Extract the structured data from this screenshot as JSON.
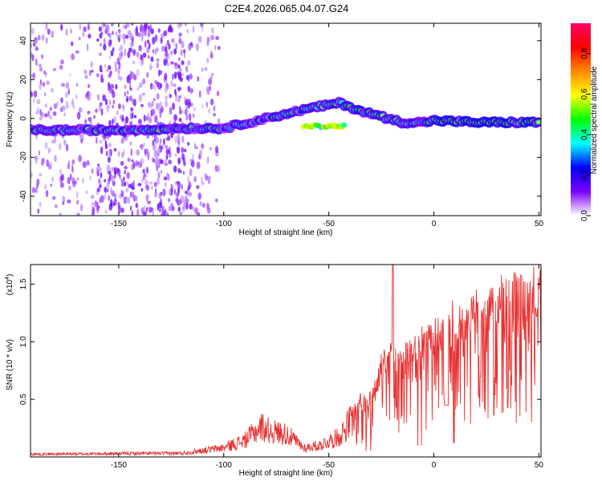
{
  "title": "C2E4.2026.065.04.07.G24",
  "chart_data": [
    {
      "type": "heatmap",
      "name": "spectrogram",
      "xlabel": "Height of straight line (km)",
      "ylabel": "Frequency (Hz)",
      "xlim": [
        -192,
        51
      ],
      "ylim": [
        -50,
        49
      ],
      "xticks": [
        -150,
        -100,
        -50,
        0,
        50
      ],
      "yticks": [
        -40,
        -20,
        0,
        20,
        40
      ],
      "colorbar": {
        "label": "Normalized spectral amplitude",
        "range": [
          0,
          0.95
        ],
        "ticks": [
          "0.0",
          "0.2",
          "0.4",
          "0.6",
          "0.8"
        ],
        "tick_values": [
          0,
          0.2,
          0.4,
          0.6,
          0.8
        ],
        "colors": [
          "#ffffff",
          "#7a00ff",
          "#0000ff",
          "#00ffff",
          "#00ff00",
          "#ffff00",
          "#ff8800",
          "#ff0000",
          "#ff0066"
        ]
      },
      "ridge": {
        "x": [
          -192,
          -150,
          -120,
          -100,
          -80,
          -60,
          -45,
          -35,
          -25,
          -15,
          -5,
          0,
          20,
          50
        ],
        "freq": [
          -6,
          -6,
          -5,
          -5,
          0,
          5,
          8,
          4,
          1,
          -2,
          -2,
          -1,
          -2,
          -2
        ]
      }
    },
    {
      "type": "line",
      "name": "snr",
      "xlabel": "Height of straight line (km)",
      "ylabel": "SNR (10 * v/v)",
      "scale_label": "(x10",
      "scale_exp": "4",
      "series_color": "#e83030",
      "xlim": [
        -192,
        51
      ],
      "ylim": [
        0,
        1.67
      ],
      "xticks": [
        -150,
        -100,
        -50,
        0,
        50
      ],
      "yticks": [
        "0.5",
        "1.0",
        "1.5"
      ],
      "ytick_values": [
        0.5,
        1.0,
        1.5
      ],
      "envelope": {
        "x": [
          -192,
          -120,
          -100,
          -90,
          -82,
          -78,
          -70,
          -62,
          -55,
          -45,
          -38,
          -30,
          -25,
          -20,
          -15,
          -10,
          0,
          10,
          20,
          30,
          40,
          51
        ],
        "y": [
          0.03,
          0.04,
          0.1,
          0.18,
          0.33,
          0.28,
          0.25,
          0.1,
          0.12,
          0.22,
          0.45,
          0.55,
          0.78,
          0.92,
          0.85,
          0.95,
          1.05,
          1.2,
          1.28,
          1.36,
          1.42,
          1.46
        ]
      }
    }
  ]
}
